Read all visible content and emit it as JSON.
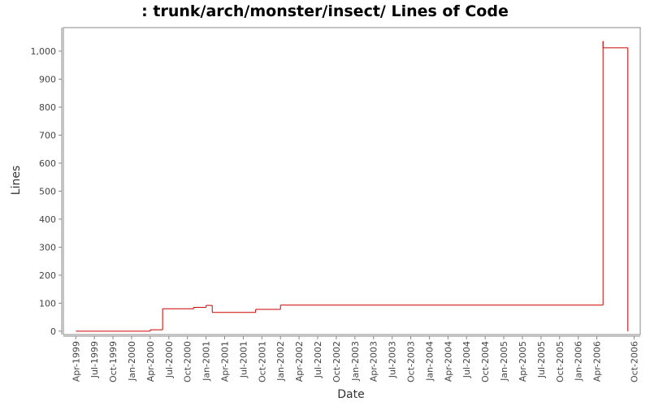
{
  "chart_data": {
    "type": "step-line",
    "title": ": trunk/arch/monster/insect/ Lines of Code",
    "x_label": "Date",
    "y_label": "Lines",
    "x": [
      "1999-04",
      "2000-04",
      "2000-06",
      "2000-11",
      "2001-01",
      "2001-02",
      "2001-09",
      "2002-01",
      "2006-05",
      "2006-05",
      "2006-09"
    ],
    "series": [
      {
        "name": "Lines",
        "color": "#cc0000",
        "values": [
          0,
          5,
          80,
          85,
          92,
          67,
          78,
          93,
          1035,
          1012,
          0
        ]
      }
    ],
    "xlim": [
      "1999-02",
      "2006-11"
    ],
    "xticks": [
      {
        "value": "1999-04",
        "label": "Apr-1999"
      },
      {
        "value": "1999-07",
        "label": "Jul-1999"
      },
      {
        "value": "1999-10",
        "label": "Oct-1999"
      },
      {
        "value": "2000-01",
        "label": "Jan-2000"
      },
      {
        "value": "2000-04",
        "label": "Apr-2000"
      },
      {
        "value": "2000-07",
        "label": "Jul-2000"
      },
      {
        "value": "2000-10",
        "label": "Oct-2000"
      },
      {
        "value": "2001-01",
        "label": "Jan-2001"
      },
      {
        "value": "2001-04",
        "label": "Apr-2001"
      },
      {
        "value": "2001-07",
        "label": "Jul-2001"
      },
      {
        "value": "2001-10",
        "label": "Oct-2001"
      },
      {
        "value": "2002-01",
        "label": "Jan-2002"
      },
      {
        "value": "2002-04",
        "label": "Apr-2002"
      },
      {
        "value": "2002-07",
        "label": "Jul-2002"
      },
      {
        "value": "2002-10",
        "label": "Oct-2002"
      },
      {
        "value": "2003-01",
        "label": "Jan-2003"
      },
      {
        "value": "2003-04",
        "label": "Apr-2003"
      },
      {
        "value": "2003-07",
        "label": "Jul-2003"
      },
      {
        "value": "2003-10",
        "label": "Oct-2003"
      },
      {
        "value": "2004-01",
        "label": "Jan-2004"
      },
      {
        "value": "2004-04",
        "label": "Apr-2004"
      },
      {
        "value": "2004-07",
        "label": "Jul-2004"
      },
      {
        "value": "2004-10",
        "label": "Oct-2004"
      },
      {
        "value": "2005-01",
        "label": "Jan-2005"
      },
      {
        "value": "2005-04",
        "label": "Apr-2005"
      },
      {
        "value": "2005-07",
        "label": "Jul-2005"
      },
      {
        "value": "2005-10",
        "label": "Oct-2005"
      },
      {
        "value": "2006-01",
        "label": "Jan-2006"
      },
      {
        "value": "2006-04",
        "label": "Apr-2006"
      },
      {
        "value": "2006-10",
        "label": "Oct-2006"
      }
    ],
    "ylim": [
      -12,
      1084
    ],
    "yticks": [
      0,
      100,
      200,
      300,
      400,
      500,
      600,
      700,
      800,
      900,
      {
        "value": 1000,
        "label": "1,000"
      }
    ],
    "grid": false
  }
}
